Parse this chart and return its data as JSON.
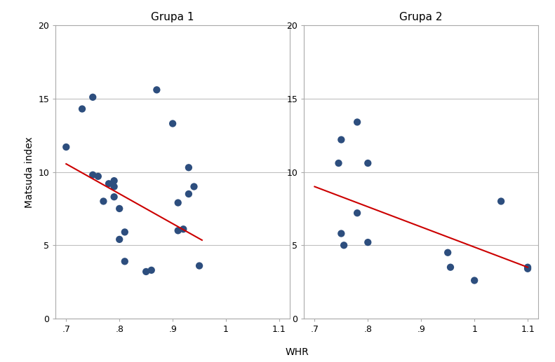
{
  "title1": "Grupa 1",
  "title2": "Grupa 2",
  "xlabel": "WHR",
  "ylabel": "Matsuda index",
  "xlim": [
    0.68,
    1.12
  ],
  "ylim": [
    0,
    20
  ],
  "xticks": [
    0.7,
    0.8,
    0.9,
    1.0,
    1.1
  ],
  "yticks": [
    0,
    5,
    10,
    15,
    20
  ],
  "xtick_labels": [
    ".7",
    ".8",
    ".9",
    "1",
    "1.1"
  ],
  "ytick_labels": [
    "0",
    "5",
    "10",
    "15",
    "20"
  ],
  "group1_x": [
    0.7,
    0.73,
    0.75,
    0.75,
    0.76,
    0.77,
    0.78,
    0.79,
    0.79,
    0.79,
    0.8,
    0.8,
    0.81,
    0.81,
    0.85,
    0.86,
    0.87,
    0.9,
    0.91,
    0.91,
    0.92,
    0.93,
    0.93,
    0.94,
    0.95
  ],
  "group1_y": [
    11.7,
    14.3,
    15.1,
    9.8,
    9.7,
    8.0,
    9.2,
    9.4,
    9.0,
    8.3,
    7.5,
    5.4,
    5.9,
    3.9,
    3.2,
    3.3,
    15.6,
    13.3,
    7.9,
    6.0,
    6.1,
    8.5,
    10.3,
    9.0,
    3.6
  ],
  "group2_x": [
    0.745,
    0.75,
    0.75,
    0.755,
    0.78,
    0.78,
    0.8,
    0.8,
    0.95,
    0.955,
    1.0,
    1.05,
    1.1,
    1.1
  ],
  "group2_y": [
    10.6,
    12.2,
    5.8,
    5.0,
    7.2,
    13.4,
    10.6,
    5.2,
    4.5,
    3.5,
    2.6,
    8.0,
    3.5,
    3.4
  ],
  "line1_x": [
    0.7,
    0.955
  ],
  "line1_y": [
    10.55,
    5.35
  ],
  "line2_x": [
    0.7,
    1.1
  ],
  "line2_y": [
    9.0,
    3.5
  ],
  "dot_color": "#2d4e7e",
  "line_color": "#cc0000",
  "bg_color": "#ffffff",
  "plot_bg_color": "#ffffff",
  "grid_color": "#c0c0c0",
  "spine_color": "#aaaaaa"
}
